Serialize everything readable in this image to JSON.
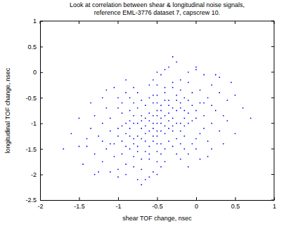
{
  "chart_data": {
    "type": "scatter",
    "title": [
      "Look at correlation between shear & longitudinal noise signals,",
      "reference EML-3776 dataset 7, capscrew 10."
    ],
    "x_label": "shear TOF change, nsec",
    "y_label": "longitudinal TOF change, nsec",
    "color": "#0000ff",
    "marker": "dot",
    "xlim": [
      -2,
      1
    ],
    "xticks": [
      -2,
      -1.5,
      -1,
      -0.5,
      0,
      0.5,
      1
    ],
    "ylim": [
      -2.5,
      1
    ],
    "yticks": [
      -2.5,
      -2,
      -1.5,
      -1,
      -0.5,
      0,
      0.5,
      1
    ],
    "grid": false,
    "x": [
      -0.5,
      -0.45,
      -0.55,
      -0.6,
      -0.4,
      -0.7,
      -0.3,
      -0.65,
      -0.35,
      -0.5,
      -0.5,
      -0.8,
      -0.2,
      -0.75,
      -0.25,
      -0.9,
      -0.1,
      -0.55,
      -0.45,
      -0.85,
      -0.15,
      -1.0,
      0.0,
      -0.6,
      -0.4,
      -0.95,
      0.05,
      -1.1,
      0.1,
      -0.7,
      -0.3,
      -1.2,
      0.2,
      -0.5,
      -0.5,
      -1.3,
      0.3,
      -0.8,
      -0.2,
      -1.0,
      0.0,
      -0.65,
      -0.35,
      -0.9,
      -0.1,
      -1.15,
      0.15,
      -0.45,
      -0.55,
      -0.75,
      -0.25,
      -0.6,
      -0.4,
      -0.85,
      -0.15,
      -0.7,
      -0.3,
      -0.95,
      -0.05,
      -0.5,
      -0.5,
      -1.05,
      0.05,
      -0.8,
      -0.2,
      -1.25,
      0.25,
      -0.65,
      -0.35,
      -1.4,
      0.4,
      -0.9,
      -0.1,
      -1.0,
      0.0,
      -0.6,
      -0.4,
      -0.75,
      -0.25,
      -1.1,
      0.1,
      -0.55,
      -0.45,
      -0.85,
      -0.15,
      -0.7,
      -0.3,
      -0.6,
      -0.4,
      -0.8,
      -0.2,
      -1.2,
      0.2,
      -0.95,
      -0.05,
      -1.3,
      0.3,
      -0.5,
      -0.5,
      -1.5,
      0.5,
      -0.7,
      -0.3,
      -1.05,
      0.05,
      -0.55,
      -0.45,
      -1.35,
      0.35,
      -0.65,
      -0.35,
      -0.9,
      -0.1,
      -0.8,
      -0.2,
      -1.15,
      0.15,
      -0.6,
      -0.4,
      -0.75,
      -0.25,
      -1.0,
      0.0,
      -0.55,
      -0.45,
      -0.85,
      -0.15,
      -0.65,
      -0.35,
      -1.2,
      0.2,
      -0.9,
      -0.1,
      -1.45,
      0.45,
      -0.6,
      -0.4,
      -0.7,
      -0.3,
      -0.95,
      -0.05,
      -1.1,
      0.1,
      -0.8,
      -0.2,
      -1.25,
      0.25,
      -0.5,
      -0.5,
      -0.75,
      -0.25,
      -1.05,
      0.05,
      -0.65,
      -0.35,
      -0.85,
      -0.15,
      -0.55,
      -0.45,
      -1.6,
      0.6,
      -0.9,
      -0.1,
      -1.35,
      0.35,
      -0.6,
      -0.4,
      -0.7,
      -0.3,
      -1.0,
      0.0,
      -0.8,
      -0.2,
      -1.4,
      0.4,
      -0.55,
      -0.45,
      -0.75,
      -0.25,
      -1.15,
      0.15,
      -0.65,
      -0.35,
      -0.95,
      -0.05,
      -1.7,
      0.7,
      -0.5,
      -0.5,
      -0.6,
      -0.4,
      -1.2,
      0.2,
      -0.85,
      -0.15,
      -1.3,
      0.3,
      -0.7,
      -0.3,
      -0.9,
      -0.1,
      -1.5,
      0.5,
      -0.55,
      -0.45,
      -0.8,
      -0.2,
      -1.0,
      0.0,
      -0.75,
      -0.25,
      -1.1,
      0.1
    ],
    "values": [
      -1.0,
      -0.9,
      -1.1,
      -0.8,
      -1.2,
      -1.3,
      -0.7,
      -1.05,
      -0.95,
      -1.4,
      -0.6,
      -1.0,
      -1.0,
      -0.7,
      -1.3,
      -1.2,
      -0.8,
      -0.45,
      -1.6,
      -1.5,
      -0.5,
      -1.1,
      -0.9,
      -1.7,
      -0.3,
      -0.8,
      -1.2,
      -1.4,
      -0.6,
      -1.9,
      -0.2,
      -1.0,
      -1.0,
      -2.0,
      0.0,
      -1.6,
      -0.4,
      -0.3,
      -1.7,
      -0.5,
      -1.5,
      -1.55,
      -0.55,
      -1.8,
      -0.2,
      -0.7,
      -1.35,
      -1.85,
      -0.15,
      -1.25,
      -0.75,
      -1.15,
      -0.85,
      -0.95,
      -1.05,
      -0.55,
      -1.45,
      -1.35,
      -0.65,
      -1.25,
      -0.75,
      -1.65,
      -0.35,
      -1.65,
      -0.35,
      -1.25,
      -0.75,
      -2.1,
      0.1,
      -1.45,
      -0.55,
      -0.15,
      -1.85,
      -1.9,
      0.1,
      -0.25,
      -1.75,
      -1.45,
      -0.45,
      -0.9,
      -1.1,
      -1.35,
      -0.65,
      -1.1,
      -0.9,
      -0.85,
      -1.15,
      -0.95,
      -1.05,
      -0.6,
      -1.4,
      -1.75,
      -0.25,
      -1.05,
      -0.95,
      -0.85,
      -1.15,
      -1.55,
      -0.45,
      -1.45,
      -0.45,
      -2.2,
      0.3,
      -0.3,
      -1.7,
      -1.95,
      -0.05,
      -1.1,
      -0.85,
      -0.65,
      -1.35,
      -1.45,
      -0.55,
      -1.3,
      -0.7,
      -1.5,
      -0.5,
      -1.45,
      -0.55,
      -1.0,
      -1.0,
      -1.25,
      -0.75,
      -0.85,
      -1.15,
      -0.75,
      -1.25,
      -1.2,
      -0.8,
      -0.5,
      -1.5,
      -2.0,
      0.0,
      -1.8,
      -0.2,
      -1.6,
      -0.4,
      -1.1,
      -0.9,
      -0.6,
      -1.4,
      -1.15,
      -0.85,
      -1.85,
      -0.15,
      -1.95,
      -0.05,
      -1.75,
      -0.25,
      -0.4,
      -1.6,
      -1.4,
      -0.6,
      -0.9,
      -1.1,
      -1.25,
      -0.75,
      -1.0,
      -1.0,
      -1.2,
      -0.7,
      -0.4,
      -1.6,
      -0.6,
      -1.4,
      -0.5,
      -1.5,
      -1.7,
      -0.3,
      -2.05,
      0.05,
      -0.85,
      -1.15,
      -1.3,
      -0.95,
      -0.6,
      -1.4,
      -1.55,
      -0.55,
      -0.35,
      -1.65,
      -1.35,
      -0.65,
      -1.6,
      -0.4,
      -1.5,
      -0.9,
      -0.85,
      -1.15,
      -2.05,
      0.05,
      -1.35,
      -0.65,
      -0.5,
      -1.5,
      -2.0,
      -0.1,
      -0.95,
      -1.05,
      -1.0,
      -1.0,
      -0.9,
      -1.2,
      -1.25,
      -0.75,
      -1.4,
      -0.6,
      -0.7,
      -1.3,
      -2.1,
      0.2,
      -1.95,
      -0.05
    ]
  }
}
